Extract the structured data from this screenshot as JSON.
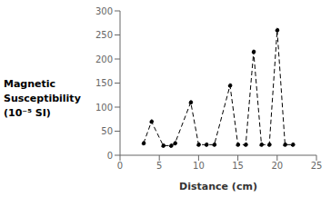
{
  "chart_data": {
    "type": "line",
    "x": [
      3,
      4,
      5.5,
      6.5,
      7,
      9,
      10,
      11,
      12,
      14,
      15,
      16,
      17,
      18,
      19,
      20,
      21,
      22
    ],
    "values": [
      25,
      70,
      20,
      20,
      25,
      110,
      22,
      22,
      22,
      145,
      22,
      22,
      215,
      22,
      22,
      260,
      22,
      22
    ],
    "xlim": [
      0,
      25
    ],
    "ylim": [
      0,
      300
    ],
    "xticks": [
      0,
      5,
      10,
      15,
      20,
      25
    ],
    "yticks": [
      0,
      50,
      100,
      150,
      200,
      250,
      300
    ],
    "xlabel": "Distance (cm)",
    "ylabel": [
      "Magnetic",
      "Susceptibility",
      "(10⁻⁵ SI)"
    ],
    "color": "black",
    "marker": "circle",
    "line_style": "dashed",
    "grid": false
  }
}
